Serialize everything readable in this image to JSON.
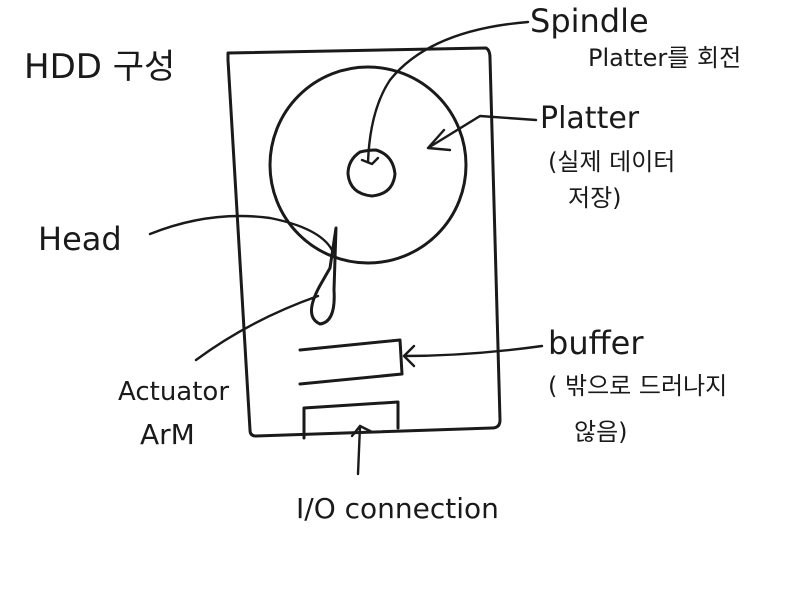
{
  "title": "HDD 구성",
  "labels": {
    "spindle": "Spindle",
    "spindle_desc": "Platter를 회전",
    "platter": "Platter",
    "platter_desc_1": "(실제 데이터",
    "platter_desc_2": "저장)",
    "head": "Head",
    "actuator_1": "Actuator",
    "actuator_2": "ArM",
    "buffer": "buffer",
    "buffer_desc_1": "( 밖으로 드러나지",
    "buffer_desc_2": "않음)",
    "io": "I/O connection"
  }
}
